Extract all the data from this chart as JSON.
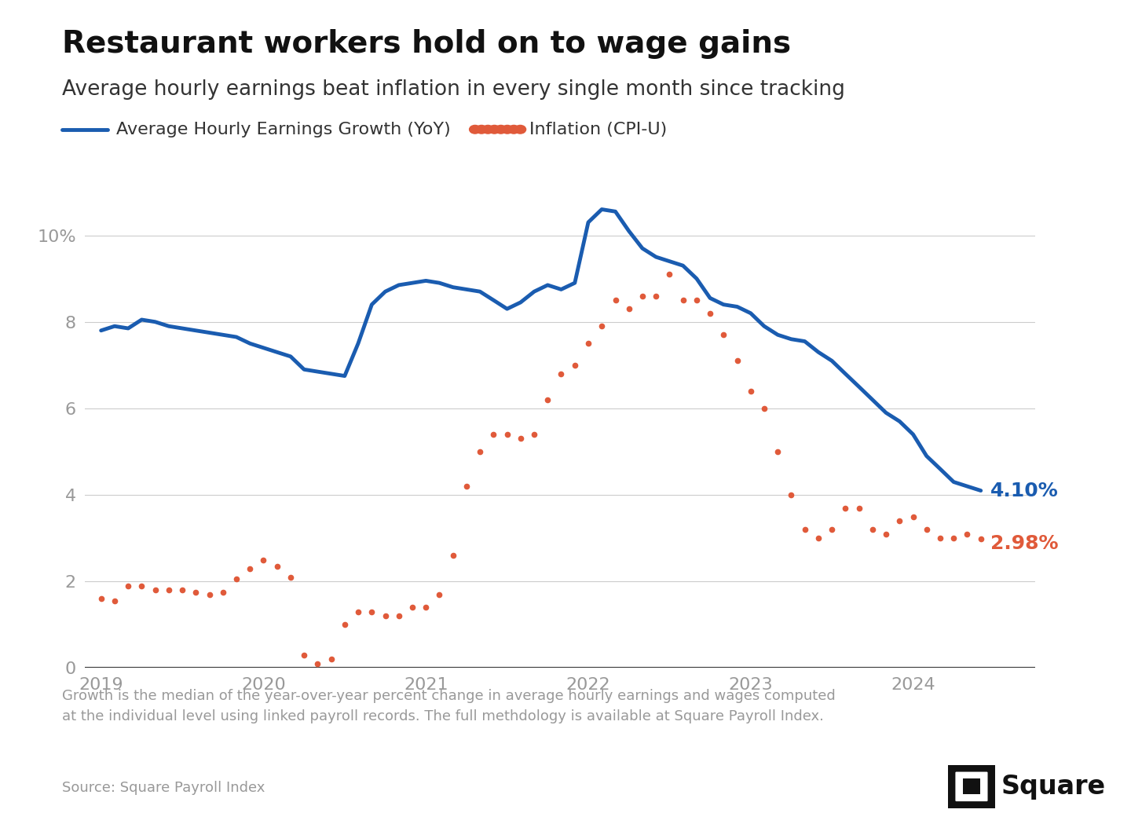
{
  "title": "Restaurant workers hold on to wage gains",
  "subtitle": "Average hourly earnings beat inflation in every single month since tracking",
  "legend_earnings": "Average Hourly Earnings Growth (YoY)",
  "legend_inflation": "Inflation (CPI-U)",
  "footnote": "Growth is the median of the year-over-year percent change in average hourly earnings and wages computed\nat the individual level using linked payroll records. The full methdology is available at Square Payroll Index.",
  "source": "Source: Square Payroll Index",
  "earnings_color": "#1a5cb0",
  "inflation_color": "#e05a3a",
  "end_label_earnings": "4.10%",
  "end_label_inflation": "2.98%",
  "ylim": [
    0,
    11
  ],
  "yticks": [
    0,
    2,
    4,
    6,
    8,
    10
  ],
  "ytick_labels": [
    "0",
    "2",
    "4",
    "6",
    "8",
    "10%"
  ],
  "bg_color": "#ffffff",
  "grid_color": "#cccccc",
  "earnings_x": [
    2019.0,
    2019.083,
    2019.167,
    2019.25,
    2019.333,
    2019.417,
    2019.5,
    2019.583,
    2019.667,
    2019.75,
    2019.833,
    2019.917,
    2020.0,
    2020.083,
    2020.167,
    2020.25,
    2020.333,
    2020.417,
    2020.5,
    2020.583,
    2020.667,
    2020.75,
    2020.833,
    2020.917,
    2021.0,
    2021.083,
    2021.167,
    2021.25,
    2021.333,
    2021.417,
    2021.5,
    2021.583,
    2021.667,
    2021.75,
    2021.833,
    2021.917,
    2022.0,
    2022.083,
    2022.167,
    2022.25,
    2022.333,
    2022.417,
    2022.5,
    2022.583,
    2022.667,
    2022.75,
    2022.833,
    2022.917,
    2023.0,
    2023.083,
    2023.167,
    2023.25,
    2023.333,
    2023.417,
    2023.5,
    2023.583,
    2023.667,
    2023.75,
    2023.833,
    2023.917,
    2024.0,
    2024.083,
    2024.167,
    2024.25,
    2024.333,
    2024.417
  ],
  "earnings_y": [
    7.8,
    7.9,
    7.85,
    8.05,
    8.0,
    7.9,
    7.85,
    7.8,
    7.75,
    7.7,
    7.65,
    7.5,
    7.4,
    7.3,
    7.2,
    6.9,
    6.85,
    6.8,
    6.75,
    7.5,
    8.4,
    8.7,
    8.85,
    8.9,
    8.95,
    8.9,
    8.8,
    8.75,
    8.7,
    8.5,
    8.3,
    8.45,
    8.7,
    8.85,
    8.75,
    8.9,
    10.3,
    10.6,
    10.55,
    10.1,
    9.7,
    9.5,
    9.4,
    9.3,
    9.0,
    8.55,
    8.4,
    8.35,
    8.2,
    7.9,
    7.7,
    7.6,
    7.55,
    7.3,
    7.1,
    6.8,
    6.5,
    6.2,
    5.9,
    5.7,
    5.4,
    4.9,
    4.6,
    4.3,
    4.2,
    4.1
  ],
  "inflation_x": [
    2019.0,
    2019.083,
    2019.167,
    2019.25,
    2019.333,
    2019.417,
    2019.5,
    2019.583,
    2019.667,
    2019.75,
    2019.833,
    2019.917,
    2020.0,
    2020.083,
    2020.167,
    2020.25,
    2020.333,
    2020.417,
    2020.5,
    2020.583,
    2020.667,
    2020.75,
    2020.833,
    2020.917,
    2021.0,
    2021.083,
    2021.167,
    2021.25,
    2021.333,
    2021.417,
    2021.5,
    2021.583,
    2021.667,
    2021.75,
    2021.833,
    2021.917,
    2022.0,
    2022.083,
    2022.167,
    2022.25,
    2022.333,
    2022.417,
    2022.5,
    2022.583,
    2022.667,
    2022.75,
    2022.833,
    2022.917,
    2023.0,
    2023.083,
    2023.167,
    2023.25,
    2023.333,
    2023.417,
    2023.5,
    2023.583,
    2023.667,
    2023.75,
    2023.833,
    2023.917,
    2024.0,
    2024.083,
    2024.167,
    2024.25,
    2024.333,
    2024.417
  ],
  "inflation_y": [
    1.6,
    1.55,
    1.9,
    1.9,
    1.8,
    1.8,
    1.8,
    1.75,
    1.7,
    1.75,
    2.05,
    2.3,
    2.5,
    2.35,
    2.1,
    0.3,
    0.1,
    0.2,
    1.0,
    1.3,
    1.3,
    1.2,
    1.2,
    1.4,
    1.4,
    1.7,
    2.6,
    4.2,
    5.0,
    5.4,
    5.4,
    5.3,
    5.4,
    6.2,
    6.8,
    7.0,
    7.5,
    7.9,
    8.5,
    8.3,
    8.6,
    8.6,
    9.1,
    8.5,
    8.5,
    8.2,
    7.7,
    7.1,
    6.4,
    6.0,
    5.0,
    4.0,
    3.2,
    3.0,
    3.2,
    3.7,
    3.7,
    3.2,
    3.1,
    3.4,
    3.5,
    3.2,
    3.0,
    3.0,
    3.1,
    2.98
  ]
}
